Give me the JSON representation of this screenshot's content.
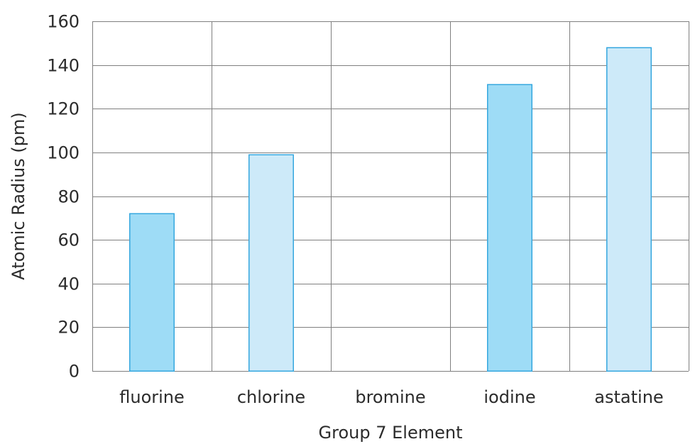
{
  "chart_data": {
    "type": "bar",
    "categories": [
      "fluorine",
      "chlorine",
      "bromine",
      "iodine",
      "astatine"
    ],
    "values": [
      72,
      99,
      null,
      131,
      148
    ],
    "title": "",
    "xlabel": "Group 7 Element",
    "ylabel": "Atomic Radius (pm)",
    "ylim": [
      0,
      160
    ],
    "yticks": [
      0,
      20,
      40,
      60,
      80,
      100,
      120,
      140,
      160
    ],
    "grid": true,
    "legend": "none",
    "bar_colors": [
      "#9edcf6",
      "#cdeaf9",
      "#9edcf6",
      "#9edcf6",
      "#cdeaf9"
    ],
    "bar_edge_color": "#35a7df",
    "grid_color": "#7f7f7f"
  }
}
